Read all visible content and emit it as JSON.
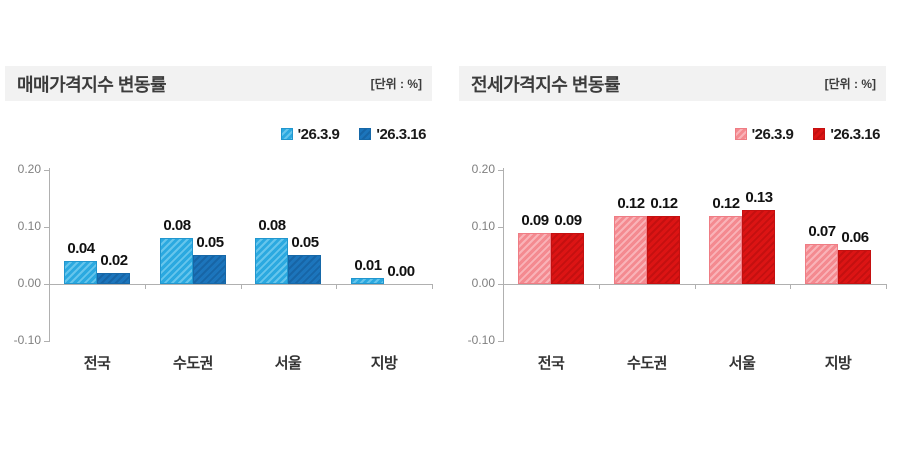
{
  "style_colors": {
    "header_band": "#F2F2F2",
    "title_text": "#3C3C3C",
    "axis": "#B0B0B0",
    "tick_label": "#7F7F7F",
    "value_label": "#111111",
    "category_label": "#333333"
  },
  "chart_data": [
    {
      "type": "bar",
      "title": "매매가격지수 변동률",
      "unit_label": "[단위 : %]",
      "categories": [
        "전국",
        "수도권",
        "서울",
        "지방"
      ],
      "series": [
        {
          "name": "'26.3.9",
          "values": [
            0.04,
            0.08,
            0.08,
            0.01
          ],
          "value_labels": [
            "0.04",
            "0.08",
            "0.08",
            "0.01"
          ],
          "fill": "#2BA9E0",
          "stripe": "#66C5EC",
          "border": "#2196CE"
        },
        {
          "name": "'26.3.16",
          "values": [
            0.02,
            0.05,
            0.05,
            0.0
          ],
          "value_labels": [
            "0.02",
            "0.05",
            "0.05",
            "0.00"
          ],
          "fill": "#1C75BC",
          "stripe": "#1765A6",
          "border": "#1668A8"
        }
      ],
      "ylim": [
        -0.1,
        0.2
      ],
      "yticks": [
        {
          "value": 0.2,
          "label": "0.20"
        },
        {
          "value": 0.1,
          "label": "0.10"
        },
        {
          "value": 0.0,
          "label": "0.00"
        },
        {
          "value": -0.1,
          "label": "-0.10"
        }
      ],
      "grid": false,
      "legend_position": "top-right"
    },
    {
      "type": "bar",
      "title": "전세가격지수 변동률",
      "unit_label": "[단위 : %]",
      "categories": [
        "전국",
        "수도권",
        "서울",
        "지방"
      ],
      "series": [
        {
          "name": "'26.3.9",
          "values": [
            0.09,
            0.12,
            0.12,
            0.07
          ],
          "value_labels": [
            "0.09",
            "0.12",
            "0.12",
            "0.07"
          ],
          "fill": "#F48A90",
          "stripe": "#F9B3B8",
          "border": "#EF7C84"
        },
        {
          "name": "'26.3.16",
          "values": [
            0.09,
            0.12,
            0.13,
            0.06
          ],
          "value_labels": [
            "0.09",
            "0.12",
            "0.13",
            "0.06"
          ],
          "fill": "#DC1414",
          "stripe": "#C41010",
          "border": "#C41010"
        }
      ],
      "ylim": [
        -0.1,
        0.2
      ],
      "yticks": [
        {
          "value": 0.2,
          "label": "0.20"
        },
        {
          "value": 0.1,
          "label": "0.10"
        },
        {
          "value": 0.0,
          "label": "0.00"
        },
        {
          "value": -0.1,
          "label": "-0.10"
        }
      ],
      "grid": false,
      "legend_position": "top-right"
    }
  ]
}
